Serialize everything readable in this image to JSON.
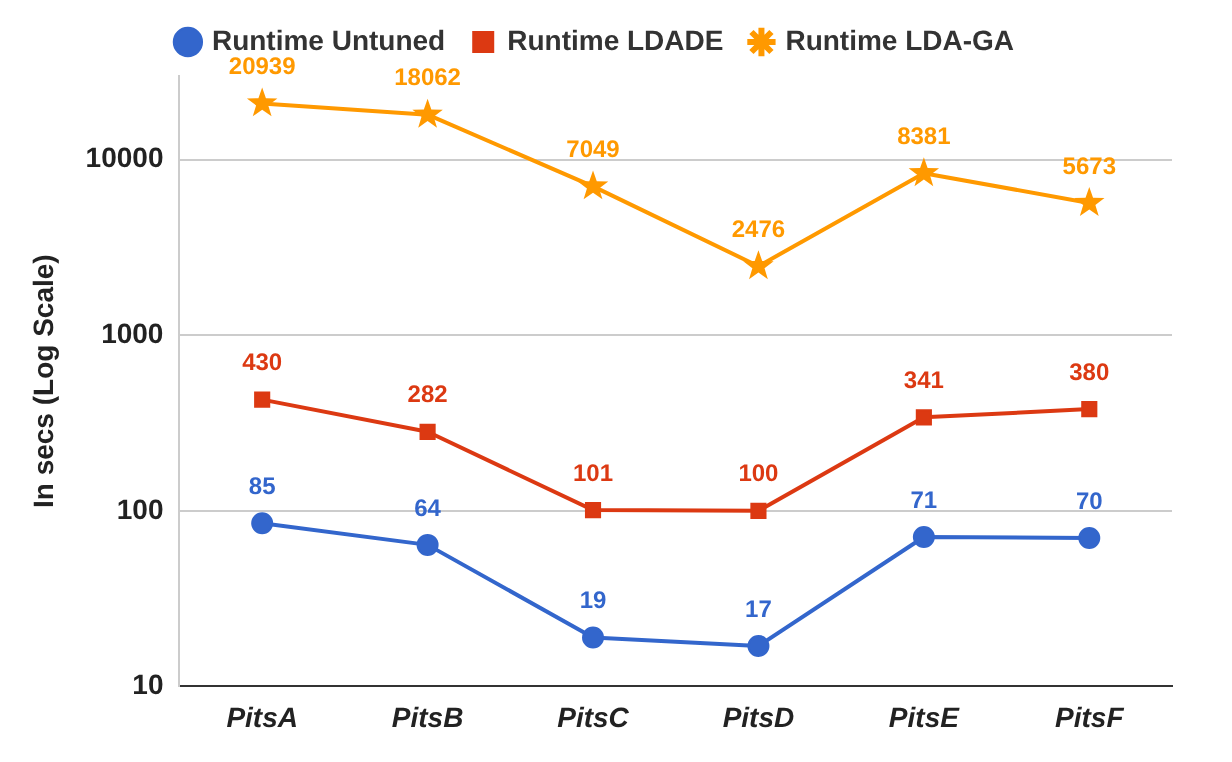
{
  "chart_data": {
    "type": "line",
    "ylabel": "In secs (Log Scale)",
    "log": "y",
    "categories": [
      "PitsA",
      "PitsB",
      "PitsC",
      "PitsD",
      "PitsE",
      "PitsF"
    ],
    "series": [
      {
        "name": "Runtime Untuned",
        "color": "#3366cc",
        "marker": "circle",
        "values": [
          85,
          64,
          19,
          17,
          71,
          70
        ]
      },
      {
        "name": "Runtime LDADE",
        "color": "#dc3912",
        "marker": "square",
        "values": [
          430,
          282,
          101,
          100,
          341,
          380
        ]
      },
      {
        "name": "Runtime LDA-GA",
        "color": "#ff9900",
        "marker": "star",
        "values": [
          20939,
          18062,
          7049,
          2476,
          8381,
          5673
        ]
      }
    ],
    "ylim": [
      10,
      30000
    ],
    "yticks": [
      10,
      100,
      1000,
      10000
    ],
    "grid": "y",
    "legend": "top",
    "data_labels": true,
    "line_style": "solid"
  }
}
